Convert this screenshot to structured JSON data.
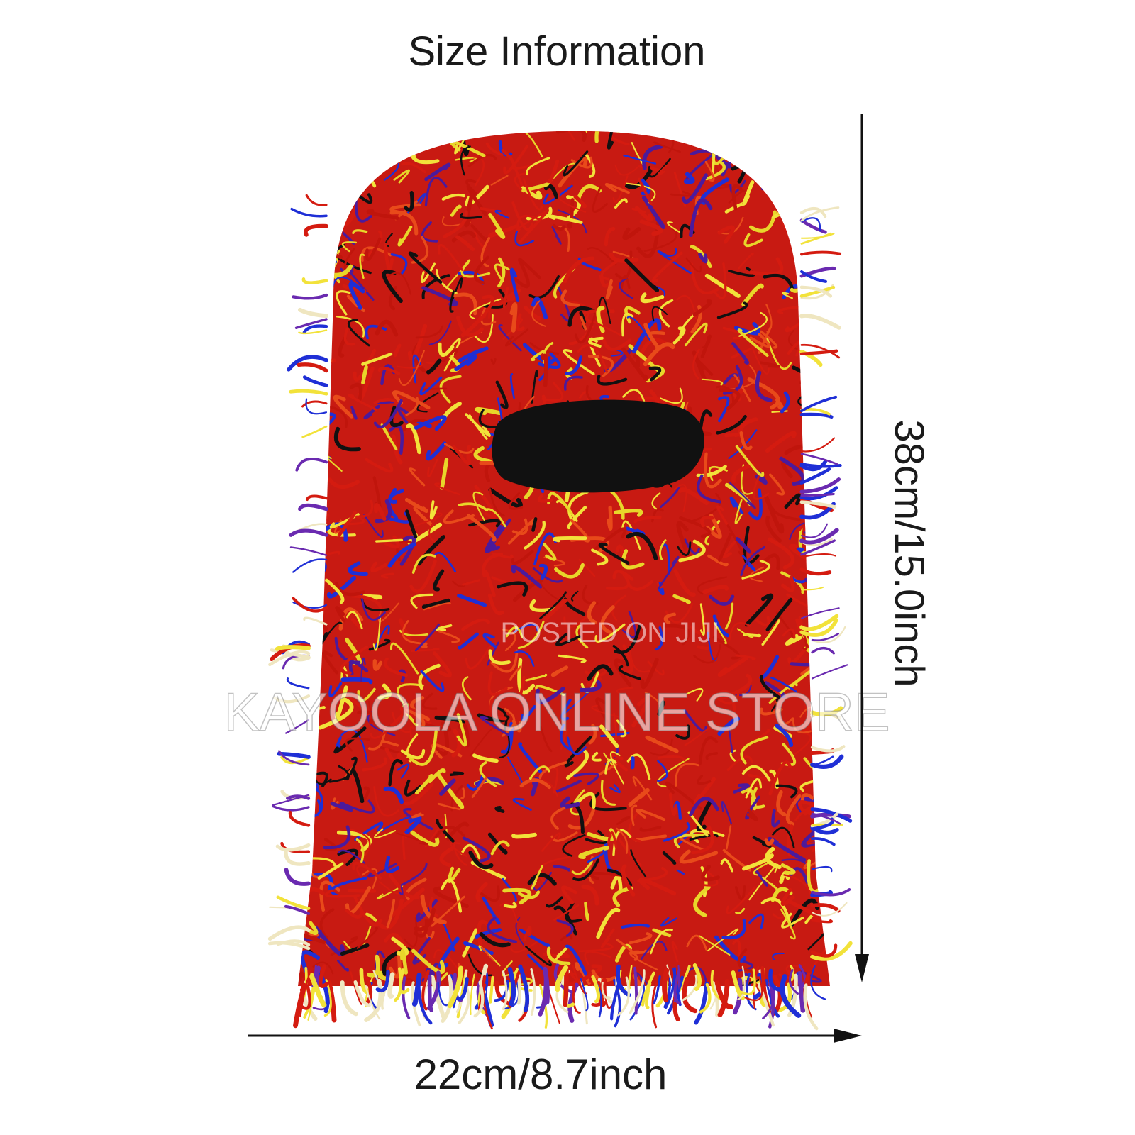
{
  "header": {
    "title": "Size Information"
  },
  "dimensions": {
    "height": "38cm/15.0inch",
    "width": "22cm/8.7inch"
  },
  "watermarks": [
    "POSTED ON JIJI",
    "KAYOOLA ONLINE STORE"
  ]
}
